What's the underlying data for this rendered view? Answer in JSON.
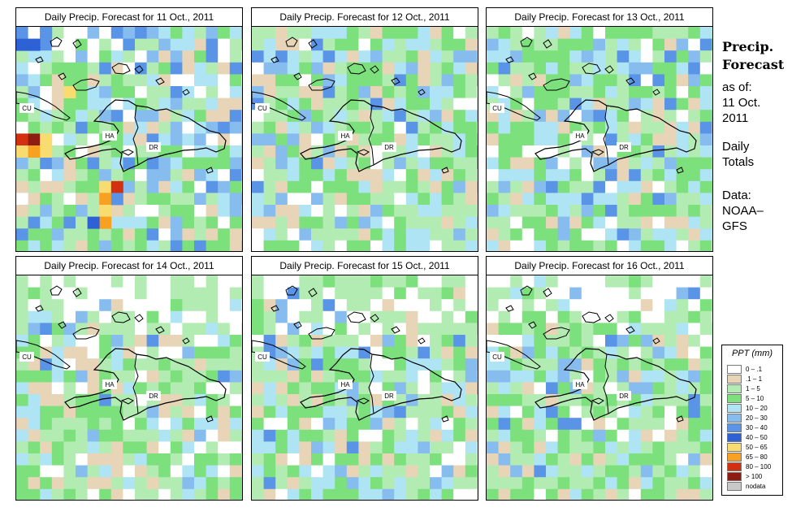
{
  "panels": [
    {
      "title": "Daily Precip. Forecast for  11 Oct., 2011"
    },
    {
      "title": "Daily Precip. Forecast for  12 Oct., 2011"
    },
    {
      "title": "Daily Precip. Forecast for  13 Oct., 2011"
    },
    {
      "title": "Daily Precip. Forecast for  14 Oct., 2011"
    },
    {
      "title": "Daily Precip. Forecast for  15 Oct., 2011"
    },
    {
      "title": "Daily Precip. Forecast for  16 Oct., 2011"
    }
  ],
  "map_labels": {
    "cuba": "CU",
    "haiti": "HA",
    "dominican_republic": "DR"
  },
  "sidebar": {
    "title_line1": "Precip.",
    "title_line2": "Forecast",
    "as_of": "as of:",
    "date_line1": "11 Oct.",
    "date_line2": "2011",
    "daily_line1": "Daily",
    "daily_line2": "Totals",
    "data_line1": "Data:",
    "data_line2": "NOAA–",
    "data_line3": "GFS"
  },
  "legend": {
    "title": "PPT (mm)",
    "items": [
      {
        "label": "0 – .1",
        "color": "#ffffff"
      },
      {
        "label": ".1 – 1",
        "color": "#e8d5b8"
      },
      {
        "label": "1 – 5",
        "color": "#b2ecb2"
      },
      {
        "label": "5 – 10",
        "color": "#7ce07c"
      },
      {
        "label": "10 – 20",
        "color": "#aee4f4"
      },
      {
        "label": "20 – 30",
        "color": "#86bcee"
      },
      {
        "label": "30 – 40",
        "color": "#5a94e6"
      },
      {
        "label": "40 – 50",
        "color": "#2e60d6"
      },
      {
        "label": "50 – 65",
        "color": "#f8dc70"
      },
      {
        "label": "65 – 80",
        "color": "#f8a020"
      },
      {
        "label": "80 – 100",
        "color": "#d23010"
      },
      {
        "label": "> 100",
        "color": "#8e1c12"
      },
      {
        "label": "nodata",
        "color": "#c8c8c8"
      }
    ]
  }
}
